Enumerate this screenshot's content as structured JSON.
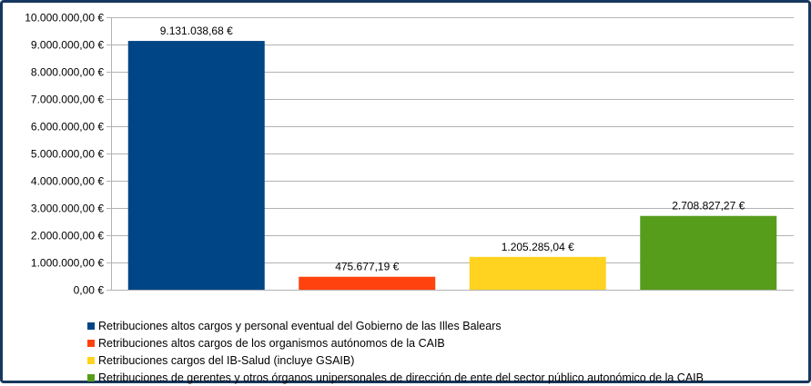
{
  "chart_data": {
    "type": "bar",
    "title": "",
    "xlabel": "",
    "ylabel": "",
    "ylim": [
      0,
      10000000
    ],
    "y_ticks": [
      0,
      1000000,
      2000000,
      3000000,
      4000000,
      5000000,
      6000000,
      7000000,
      8000000,
      9000000,
      10000000
    ],
    "y_tick_labels": [
      "0,00 €",
      "1.000.000,00 €",
      "2.000.000,00 €",
      "3.000.000,00 €",
      "4.000.000,00 €",
      "5.000.000,00 €",
      "6.000.000,00 €",
      "7.000.000,00 €",
      "8.000.000,00 €",
      "9.000.000,00 €",
      "10.000.000,00 €"
    ],
    "grid": true,
    "legend_position": "bottom",
    "series": [
      {
        "name": "Retribuciones altos cargos y personal eventual del Gobierno de las Illes Balears",
        "value": 9131038.68,
        "label": "9.131.038,68 €",
        "color": "#004586"
      },
      {
        "name": "Retribuciones altos cargos de los organismos autónomos de la CAIB",
        "value": 475677.19,
        "label": "475.677,19 €",
        "color": "#ff420e"
      },
      {
        "name": "Retribuciones cargos del IB-Salud  (incluye GSAIB)",
        "value": 1205285.04,
        "label": "1.205.285,04 €",
        "color": "#ffd320"
      },
      {
        "name": "Retribuciones de gerentes y otros órganos unipersonales de dirección de ente del sector público autonómico de la CAIB",
        "value": 2708827.27,
        "label": "2.708.827,27 €",
        "color": "#579d1c"
      }
    ]
  }
}
